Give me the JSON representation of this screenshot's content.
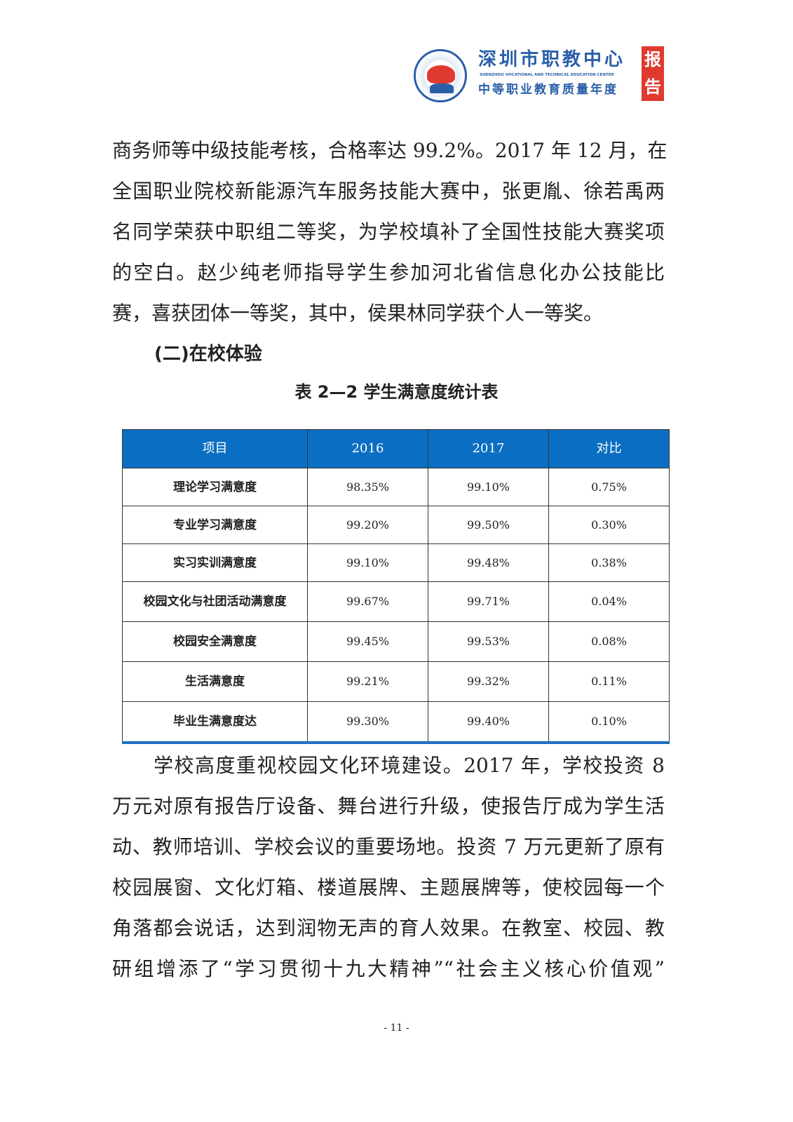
{
  "header": {
    "logo_title": "深圳市职教中心",
    "logo_subtitle": "SHENZHOU VOCATIONAL AND TECHNICAL EDUCATION CENTER",
    "report_title": "中等职业教育质量年度",
    "badge": [
      "报",
      "告"
    ]
  },
  "para1": [
    "商务师等中级技能考核，合格率达 99.2%。2017 年 12 月，在",
    "全国职业院校新能源汽车服务技能大赛中，张更胤、徐若禹两",
    "名同学荣获中职组二等奖，为学校填补了全国性技能大赛奖项",
    "的空白。赵少纯老师指导学生参加河北省信息化办公技能比",
    "赛，喜获团体一等奖，其中，侯果林同学获个人一等奖。"
  ],
  "section_heading": "(二)在校体验",
  "table_caption": "表 2—2 学生满意度统计表",
  "table": {
    "headers": [
      "项目",
      "2016",
      "2017",
      "对比"
    ],
    "rows": [
      [
        "理论学习满意度",
        "98.35%",
        "99.10%",
        "0.75%"
      ],
      [
        "专业学习满意度",
        "99.20%",
        "99.50%",
        "0.30%"
      ],
      [
        "实习实训满意度",
        "99.10%",
        "99.48%",
        "0.38%"
      ],
      [
        "校园文化与社团活动满意度",
        "99.67%",
        "99.71%",
        "0.04%"
      ],
      [
        "校园安全满意度",
        "99.45%",
        "99.53%",
        "0.08%"
      ],
      [
        "生活满意度",
        "99.21%",
        "99.32%",
        "0.11%"
      ],
      [
        "毕业生满意度达",
        "99.30%",
        "99.40%",
        "0.10%"
      ]
    ]
  },
  "para2": [
    "　　学校高度重视校园文化环境建设。2017 年，学校投资 8",
    "万元对原有报告厅设备、舞台进行升级，使报告厅成为学生活",
    "动、教师培训、学校会议的重要场地。投资 7 万元更新了原有",
    "校园展窗、文化灯箱、楼道展牌、主题展牌等，使校园每一个",
    "角落都会说话，达到润物无声的育人效果。在教室、校园、教",
    "研组增添了“学习贯彻十九大精神”“社会主义核心价值观”"
  ],
  "page_number": "- 11 -",
  "colors": {
    "table_header": "#0a6fc2",
    "brand_blue": "#2a5fa8",
    "brand_red": "#e03a2f"
  }
}
